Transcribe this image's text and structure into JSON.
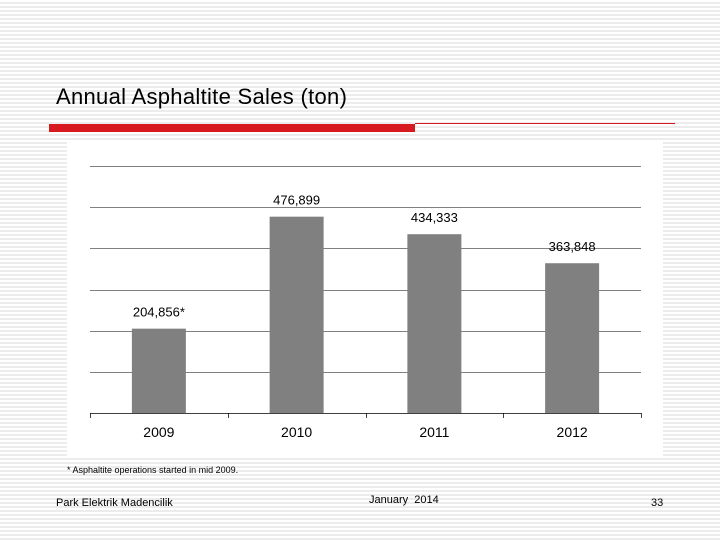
{
  "slide": {
    "title": "Annual Asphaltite Sales (ton)",
    "footnote": "* Asphaltite operations started in mid 2009.",
    "footer_left": "Park Elektrik Madencilik",
    "footer_center": "January  2014",
    "page_number": "33"
  },
  "colors": {
    "accent": "#d71920",
    "bar": "#808080",
    "rule": "#d71920",
    "grid": "#000000"
  },
  "chart_data": {
    "type": "bar",
    "categories": [
      "2009",
      "2010",
      "2011",
      "2012"
    ],
    "values": [
      204856,
      476899,
      434333,
      363848
    ],
    "data_labels": [
      "204,856*",
      "476,899",
      "434,333",
      "363,848"
    ],
    "title": "",
    "xlabel": "",
    "ylabel": "",
    "ylim": [
      0,
      600000
    ],
    "grid": true,
    "legend": "none"
  }
}
